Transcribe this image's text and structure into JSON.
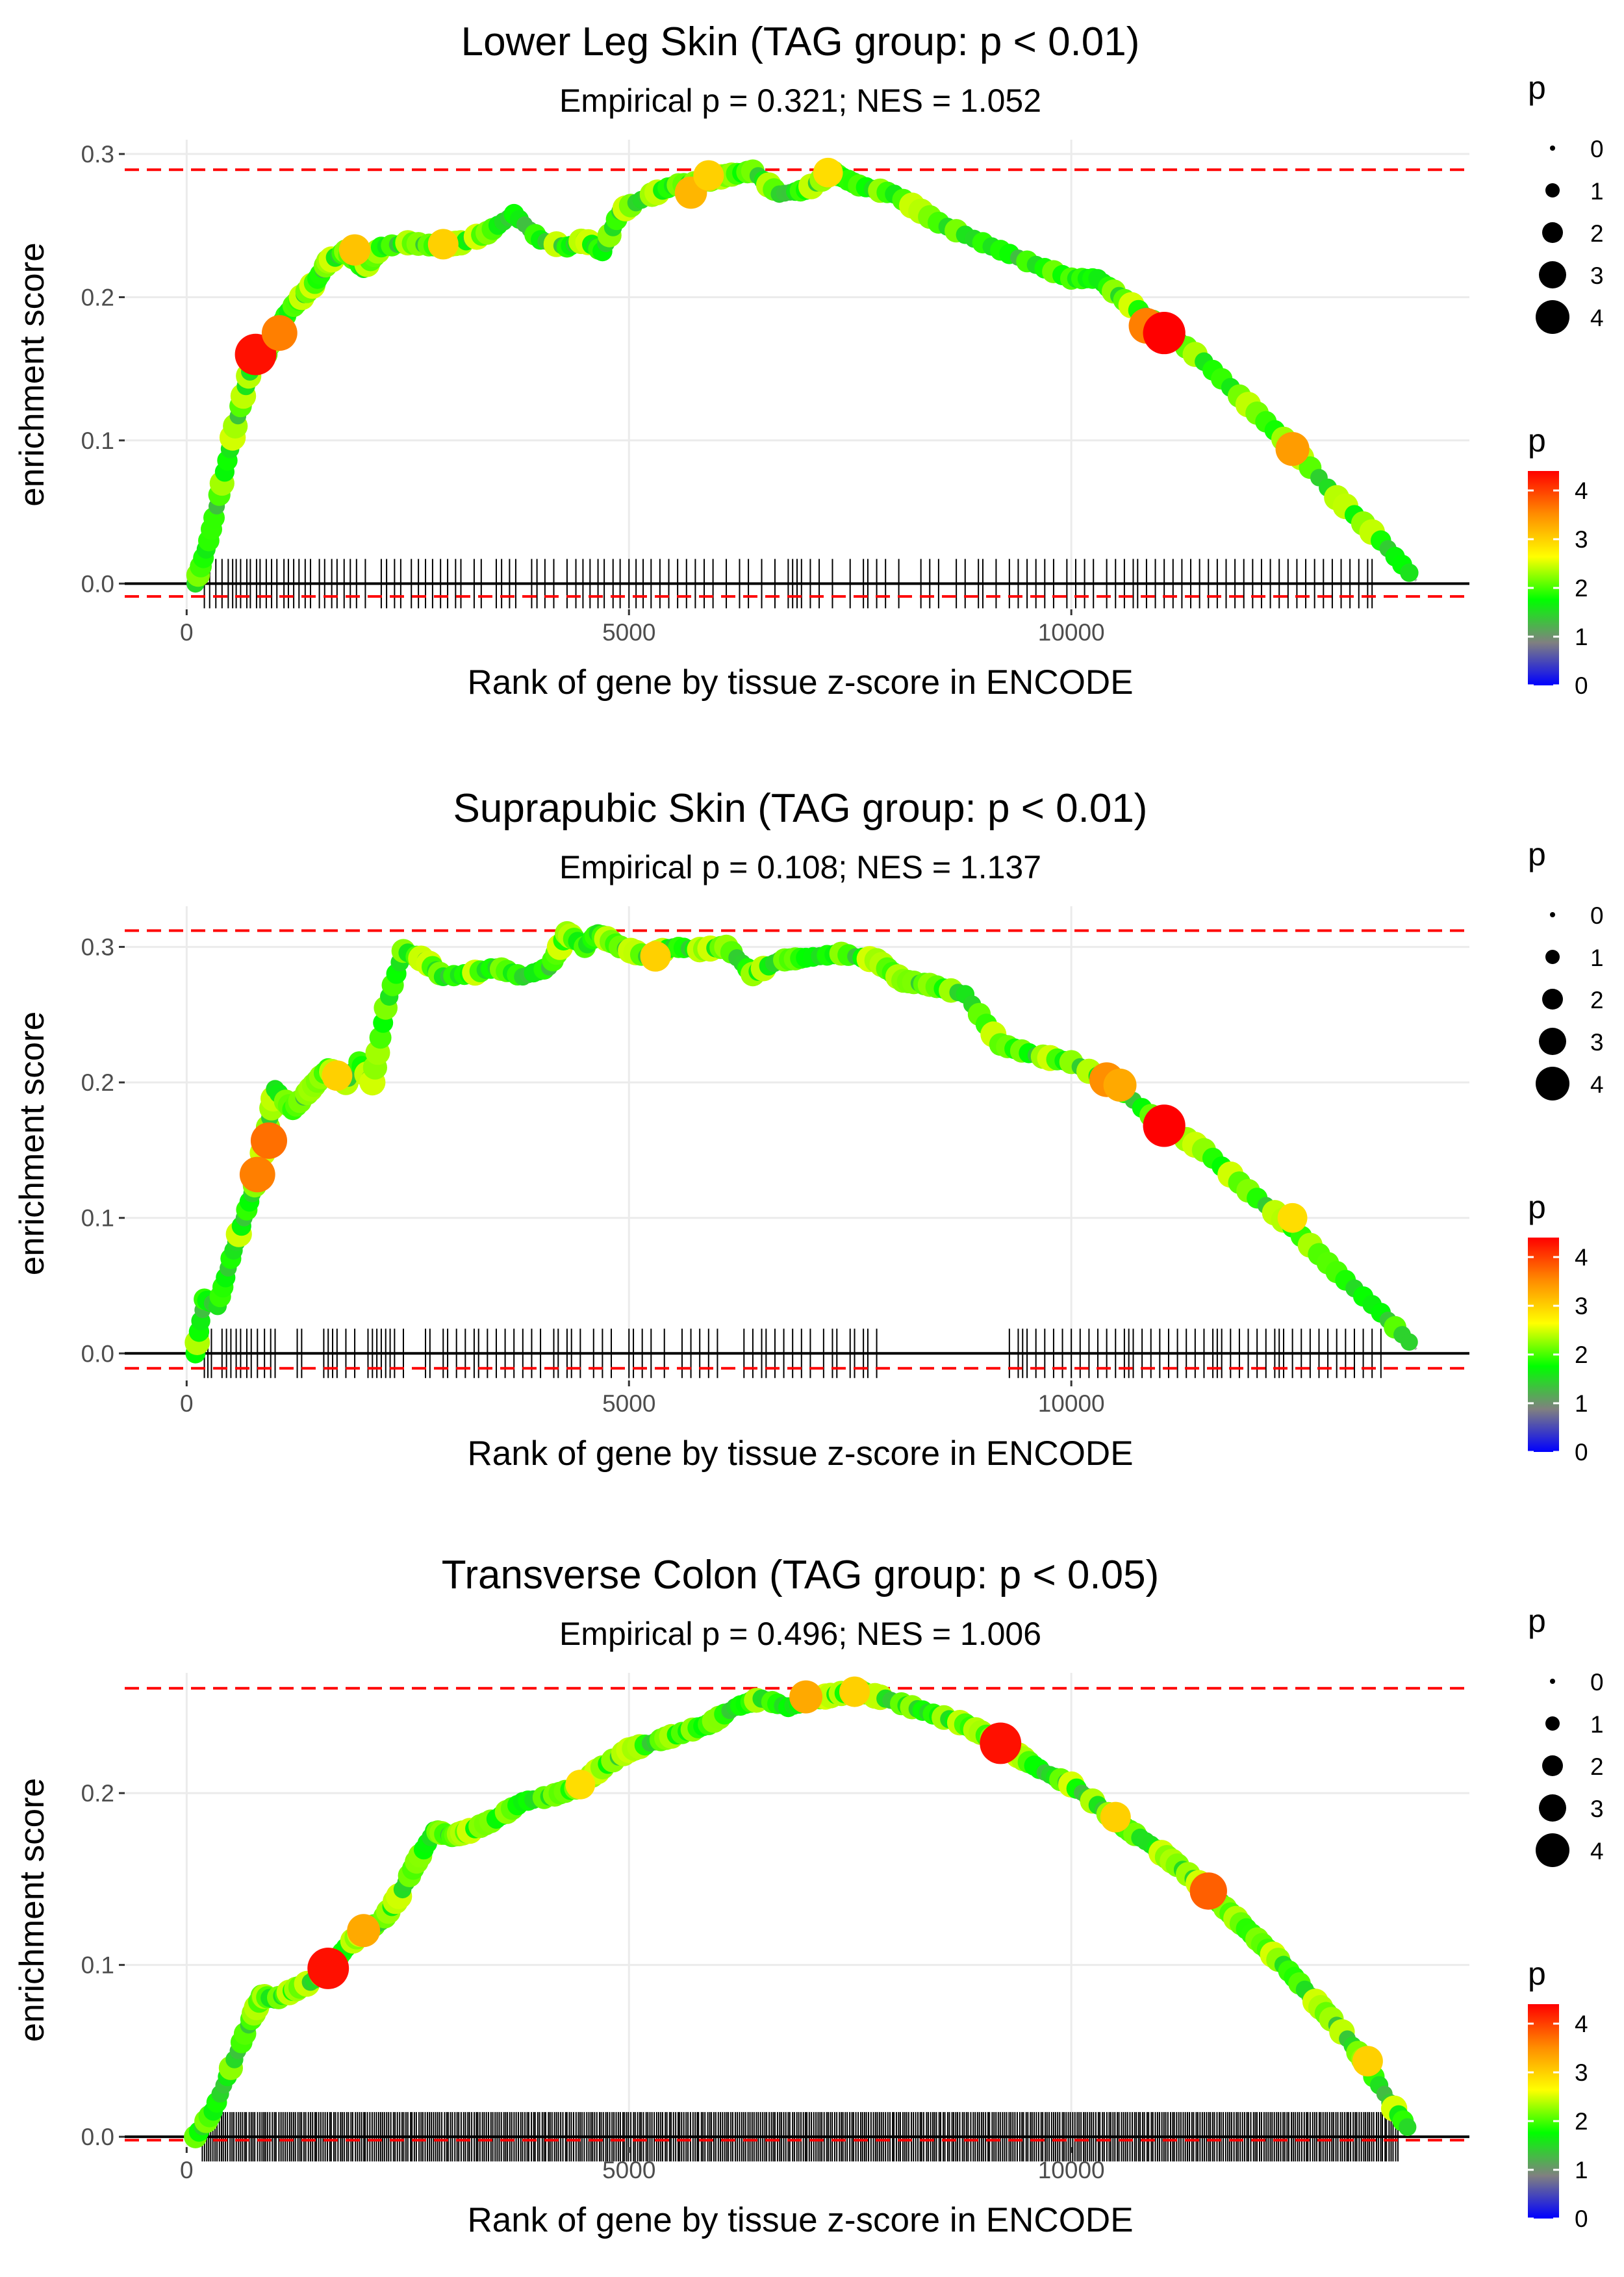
{
  "legend": {
    "size_title": "p",
    "color_title": "p",
    "size_levels": [
      "0",
      "1",
      "2",
      "3",
      "4"
    ],
    "color_ticks": [
      "0",
      "1",
      "2",
      "3",
      "4"
    ],
    "colors": [
      "#0000ff",
      "#808080",
      "#00ff00",
      "#ffff00",
      "#ff8c00",
      "#ff0000"
    ]
  },
  "chart_data": [
    {
      "type": "scatter",
      "title": "Lower Leg Skin (TAG group: p < 0.01)",
      "subtitle": "Empirical p = 0.321; NES = 1.052",
      "xlabel": "Rank of gene by tissue z-score in ENCODE",
      "ylabel": "enrichment score",
      "xlim": [
        -700,
        14500
      ],
      "ylim": [
        -0.018,
        0.31
      ],
      "x_ticks": [
        0,
        5000,
        10000
      ],
      "x_tick_labels": [
        "0",
        "5000",
        "10000"
      ],
      "y_ticks": [
        0.0,
        0.1,
        0.2,
        0.3
      ],
      "y_tick_labels": [
        "0.0",
        "0.1",
        "0.2",
        "0.3"
      ],
      "max_es_line": 0.289,
      "min_es_line": -0.009,
      "curve": [
        [
          100,
          0.0
        ],
        [
          250,
          0.03
        ],
        [
          400,
          0.07
        ],
        [
          550,
          0.11
        ],
        [
          700,
          0.145
        ],
        [
          780,
          0.16
        ],
        [
          900,
          0.16
        ],
        [
          1000,
          0.175
        ],
        [
          1150,
          0.19
        ],
        [
          1300,
          0.2
        ],
        [
          1450,
          0.21
        ],
        [
          1600,
          0.225
        ],
        [
          1800,
          0.232
        ],
        [
          2000,
          0.22
        ],
        [
          2200,
          0.235
        ],
        [
          2500,
          0.238
        ],
        [
          2800,
          0.236
        ],
        [
          3100,
          0.238
        ],
        [
          3400,
          0.245
        ],
        [
          3700,
          0.258
        ],
        [
          4000,
          0.24
        ],
        [
          4300,
          0.235
        ],
        [
          4500,
          0.24
        ],
        [
          4700,
          0.232
        ],
        [
          4900,
          0.26
        ],
        [
          5200,
          0.27
        ],
        [
          5500,
          0.278
        ],
        [
          5800,
          0.28
        ],
        [
          6100,
          0.285
        ],
        [
          6400,
          0.288
        ],
        [
          6700,
          0.272
        ],
        [
          7000,
          0.275
        ],
        [
          7300,
          0.287
        ],
        [
          7600,
          0.278
        ],
        [
          8000,
          0.272
        ],
        [
          8500,
          0.252
        ],
        [
          9000,
          0.238
        ],
        [
          9500,
          0.225
        ],
        [
          10000,
          0.213
        ],
        [
          10300,
          0.213
        ],
        [
          10600,
          0.198
        ],
        [
          11000,
          0.18
        ],
        [
          11500,
          0.155
        ],
        [
          12000,
          0.125
        ],
        [
          12500,
          0.095
        ],
        [
          13000,
          0.06
        ],
        [
          13500,
          0.03
        ],
        [
          13900,
          0.002
        ]
      ],
      "highlights": [
        {
          "x": 780,
          "y": 0.16,
          "p": 4.3
        },
        {
          "x": 1050,
          "y": 0.175,
          "p": 3.6
        },
        {
          "x": 1900,
          "y": 0.233,
          "p": 3.1
        },
        {
          "x": 2900,
          "y": 0.237,
          "p": 3.0
        },
        {
          "x": 5700,
          "y": 0.273,
          "p": 3.2
        },
        {
          "x": 5900,
          "y": 0.285,
          "p": 3.0
        },
        {
          "x": 7250,
          "y": 0.287,
          "p": 2.9
        },
        {
          "x": 10850,
          "y": 0.18,
          "p": 3.6
        },
        {
          "x": 11050,
          "y": 0.175,
          "p": 4.4
        },
        {
          "x": 12500,
          "y": 0.094,
          "p": 3.4
        }
      ],
      "rug": [
        200,
        260,
        330,
        400,
        470,
        520,
        560,
        610,
        680,
        720,
        790,
        830,
        900,
        960,
        1020,
        1100,
        1150,
        1210,
        1270,
        1340,
        1400,
        1500,
        1560,
        1640,
        1700,
        1780,
        1850,
        1920,
        2020,
        2200,
        2260,
        2350,
        2420,
        2540,
        2620,
        2700,
        2780,
        2870,
        2950,
        3040,
        3100,
        3250,
        3330,
        3500,
        3560,
        3650,
        3720,
        3900,
        3960,
        4050,
        4150,
        4300,
        4400,
        4480,
        4560,
        4650,
        4720,
        4820,
        4900,
        5000,
        5080,
        5160,
        5250,
        5350,
        5450,
        5550,
        5650,
        5750,
        5850,
        5950,
        6100,
        6250,
        6350,
        6500,
        6650,
        6800,
        6850,
        6900,
        6950,
        7050,
        7150,
        7300,
        7500,
        7650,
        7700,
        7800,
        7900,
        8050,
        8300,
        8400,
        8500,
        8700,
        8800,
        8950,
        9000,
        9150,
        9300,
        9400,
        9500,
        9600,
        9700,
        9800,
        9950,
        10050,
        10150,
        10250,
        10400,
        10500,
        10600,
        10700,
        10750,
        10850,
        10950,
        11050,
        11150,
        11250,
        11350,
        11450,
        11550,
        11650,
        11750,
        11850,
        11950,
        12050,
        12150,
        12250,
        12350,
        12450,
        12550,
        12650,
        12750,
        12850,
        12950,
        13050,
        13150,
        13250,
        13350,
        13400
      ]
    },
    {
      "type": "scatter",
      "title": "Suprapubic Skin (TAG group: p < 0.01)",
      "subtitle": "Empirical p = 0.108; NES = 1.137",
      "xlabel": "Rank of gene by tissue z-score in ENCODE",
      "ylabel": "enrichment score",
      "xlim": [
        -700,
        14500
      ],
      "ylim": [
        -0.02,
        0.33
      ],
      "x_ticks": [
        0,
        5000,
        10000
      ],
      "x_tick_labels": [
        "0",
        "5000",
        "10000"
      ],
      "y_ticks": [
        0.0,
        0.1,
        0.2,
        0.3
      ],
      "y_tick_labels": [
        "0.0",
        "0.1",
        "0.2",
        "0.3"
      ],
      "max_es_line": 0.312,
      "min_es_line": -0.011,
      "curve": [
        [
          100,
          0.0
        ],
        [
          200,
          0.04
        ],
        [
          350,
          0.035
        ],
        [
          500,
          0.07
        ],
        [
          650,
          0.1
        ],
        [
          800,
          0.13
        ],
        [
          900,
          0.16
        ],
        [
          1000,
          0.195
        ],
        [
          1200,
          0.18
        ],
        [
          1400,
          0.195
        ],
        [
          1600,
          0.21
        ],
        [
          1800,
          0.2
        ],
        [
          1950,
          0.215
        ],
        [
          2100,
          0.2
        ],
        [
          2250,
          0.255
        ],
        [
          2450,
          0.297
        ],
        [
          2700,
          0.29
        ],
        [
          2900,
          0.278
        ],
        [
          3200,
          0.28
        ],
        [
          3500,
          0.285
        ],
        [
          3800,
          0.278
        ],
        [
          4100,
          0.285
        ],
        [
          4300,
          0.31
        ],
        [
          4500,
          0.3
        ],
        [
          4650,
          0.31
        ],
        [
          4900,
          0.3
        ],
        [
          5200,
          0.293
        ],
        [
          5500,
          0.3
        ],
        [
          5800,
          0.298
        ],
        [
          6100,
          0.3
        ],
        [
          6400,
          0.28
        ],
        [
          6700,
          0.29
        ],
        [
          7000,
          0.292
        ],
        [
          7400,
          0.295
        ],
        [
          7800,
          0.29
        ],
        [
          8100,
          0.275
        ],
        [
          8400,
          0.272
        ],
        [
          8800,
          0.265
        ],
        [
          9200,
          0.228
        ],
        [
          9600,
          0.22
        ],
        [
          10000,
          0.215
        ],
        [
          10500,
          0.198
        ],
        [
          11000,
          0.17
        ],
        [
          11500,
          0.15
        ],
        [
          12000,
          0.12
        ],
        [
          12500,
          0.093
        ],
        [
          13000,
          0.06
        ],
        [
          13500,
          0.03
        ],
        [
          13900,
          0.003
        ]
      ],
      "highlights": [
        {
          "x": 800,
          "y": 0.132,
          "p": 3.6
        },
        {
          "x": 930,
          "y": 0.157,
          "p": 3.7
        },
        {
          "x": 1700,
          "y": 0.205,
          "p": 3.0
        },
        {
          "x": 5300,
          "y": 0.293,
          "p": 3.0
        },
        {
          "x": 10400,
          "y": 0.202,
          "p": 3.5
        },
        {
          "x": 10550,
          "y": 0.198,
          "p": 3.3
        },
        {
          "x": 11050,
          "y": 0.168,
          "p": 4.4
        },
        {
          "x": 12500,
          "y": 0.1,
          "p": 2.9
        }
      ],
      "rug": [
        200,
        240,
        280,
        400,
        450,
        500,
        560,
        610,
        680,
        730,
        800,
        880,
        950,
        1000,
        1250,
        1300,
        1550,
        1600,
        1650,
        1700,
        1800,
        1900,
        2050,
        2100,
        2150,
        2200,
        2250,
        2300,
        2350,
        2450,
        2700,
        2750,
        2900,
        2950,
        3050,
        3150,
        3250,
        3300,
        3400,
        3500,
        3600,
        3700,
        3800,
        3900,
        4000,
        4150,
        4200,
        4300,
        4350,
        4450,
        4600,
        4700,
        4800,
        5000,
        5050,
        5150,
        5250,
        5400,
        5600,
        5700,
        5800,
        5900,
        6000,
        6300,
        6400,
        6500,
        6550,
        6650,
        6750,
        6850,
        6950,
        7050,
        7200,
        7300,
        7350,
        7500,
        7550,
        7650,
        7700,
        7800,
        9300,
        9400,
        9450,
        9500,
        9600,
        9700,
        9800,
        9900,
        10000,
        10100,
        10200,
        10300,
        10400,
        10500,
        10600,
        10650,
        10700,
        10800,
        10900,
        11000,
        11100,
        11200,
        11300,
        11400,
        11500,
        11600,
        11650,
        11700,
        11800,
        11900,
        12000,
        12100,
        12200,
        12300,
        12350,
        12400,
        12500,
        12600,
        12700,
        12800,
        12900,
        13000,
        13100,
        13200,
        13300,
        13400,
        13500
      ]
    },
    {
      "type": "scatter",
      "title": "Transverse Colon (TAG group: p < 0.05)",
      "subtitle": "Empirical p = 0.496; NES = 1.006",
      "xlabel": "Rank of gene by tissue z-score in ENCODE",
      "ylabel": "enrichment score",
      "xlim": [
        -700,
        14500
      ],
      "ylim": [
        -0.006,
        0.27
      ],
      "x_ticks": [
        0,
        5000,
        10000
      ],
      "x_tick_labels": [
        "0",
        "5000",
        "10000"
      ],
      "y_ticks": [
        0.0,
        0.1,
        0.2
      ],
      "y_tick_labels": [
        "0.0",
        "0.1",
        "0.2"
      ],
      "max_es_line": 0.261,
      "min_es_line": -0.002,
      "curve": [
        [
          100,
          0.0
        ],
        [
          300,
          0.015
        ],
        [
          500,
          0.04
        ],
        [
          700,
          0.065
        ],
        [
          850,
          0.082
        ],
        [
          1000,
          0.08
        ],
        [
          1200,
          0.085
        ],
        [
          1400,
          0.09
        ],
        [
          1600,
          0.097
        ],
        [
          1800,
          0.11
        ],
        [
          2000,
          0.12
        ],
        [
          2200,
          0.125
        ],
        [
          2400,
          0.14
        ],
        [
          2600,
          0.16
        ],
        [
          2800,
          0.178
        ],
        [
          3000,
          0.175
        ],
        [
          3200,
          0.178
        ],
        [
          3500,
          0.185
        ],
        [
          3800,
          0.195
        ],
        [
          4100,
          0.198
        ],
        [
          4400,
          0.203
        ],
        [
          4700,
          0.215
        ],
        [
          5000,
          0.225
        ],
        [
          5300,
          0.23
        ],
        [
          5600,
          0.235
        ],
        [
          5900,
          0.24
        ],
        [
          6200,
          0.25
        ],
        [
          6500,
          0.255
        ],
        [
          6800,
          0.25
        ],
        [
          7100,
          0.255
        ],
        [
          7400,
          0.258
        ],
        [
          7600,
          0.259
        ],
        [
          7900,
          0.255
        ],
        [
          8200,
          0.25
        ],
        [
          8500,
          0.245
        ],
        [
          8800,
          0.24
        ],
        [
          9100,
          0.232
        ],
        [
          9400,
          0.222
        ],
        [
          9700,
          0.212
        ],
        [
          10000,
          0.205
        ],
        [
          10300,
          0.193
        ],
        [
          10600,
          0.18
        ],
        [
          10900,
          0.17
        ],
        [
          11200,
          0.158
        ],
        [
          11500,
          0.145
        ],
        [
          11800,
          0.13
        ],
        [
          12100,
          0.115
        ],
        [
          12400,
          0.1
        ],
        [
          12700,
          0.082
        ],
        [
          13000,
          0.065
        ],
        [
          13300,
          0.045
        ],
        [
          13600,
          0.02
        ],
        [
          13850,
          0.002
        ]
      ],
      "highlights": [
        {
          "x": 1600,
          "y": 0.098,
          "p": 4.3
        },
        {
          "x": 2000,
          "y": 0.12,
          "p": 3.3
        },
        {
          "x": 4450,
          "y": 0.205,
          "p": 2.9
        },
        {
          "x": 7000,
          "y": 0.256,
          "p": 3.3
        },
        {
          "x": 7550,
          "y": 0.259,
          "p": 3.0
        },
        {
          "x": 9200,
          "y": 0.229,
          "p": 4.3
        },
        {
          "x": 10500,
          "y": 0.186,
          "p": 3.0
        },
        {
          "x": 11550,
          "y": 0.143,
          "p": 3.8
        },
        {
          "x": 13350,
          "y": 0.044,
          "p": 3.0
        }
      ]
    }
  ]
}
